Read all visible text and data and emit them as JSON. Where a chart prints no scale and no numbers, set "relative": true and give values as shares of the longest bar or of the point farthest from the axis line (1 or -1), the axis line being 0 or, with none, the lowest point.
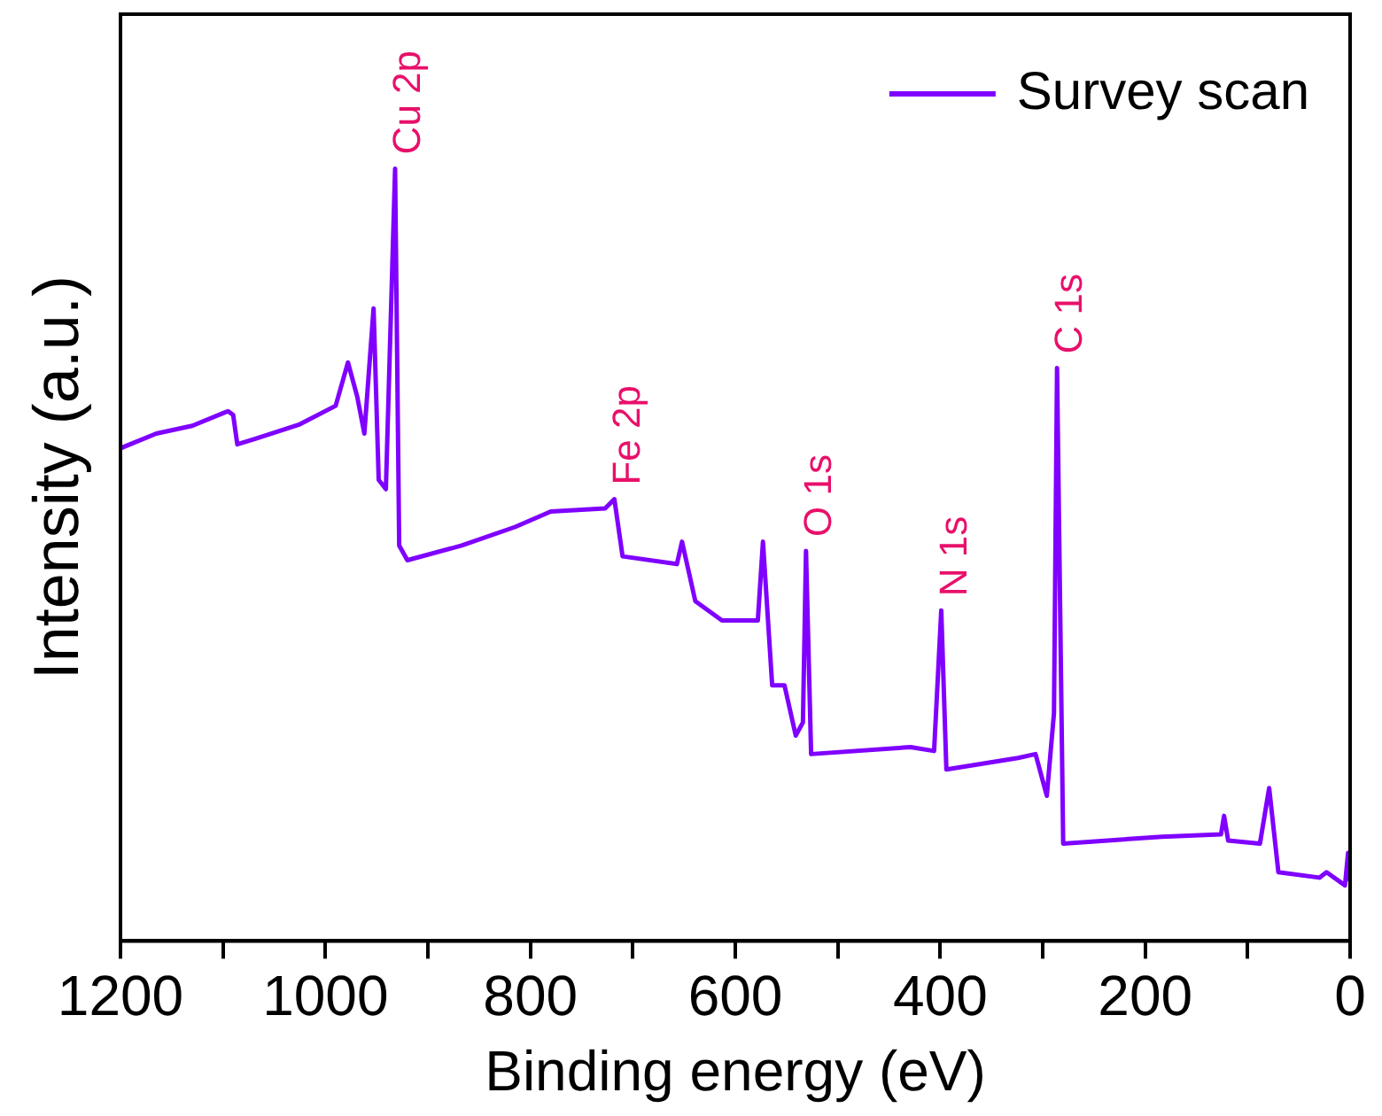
{
  "chart_data": {
    "type": "line",
    "relative": true,
    "xlabel": "Binding energy (eV)",
    "ylabel": "Intensity (a.u.)",
    "xlim": [
      1200,
      0
    ],
    "xticks": [
      1200,
      {
        "value": 1100,
        "label": null
      },
      1000,
      {
        "value": 900,
        "label": null
      },
      800,
      {
        "value": 700,
        "label": null
      },
      600,
      {
        "value": 500,
        "label": null
      },
      400,
      {
        "value": 300,
        "label": null
      },
      200,
      {
        "value": 100,
        "label": null
      },
      0
    ],
    "legend": "top right",
    "grid": false,
    "marker": "none",
    "line_style": "solid",
    "series": [
      {
        "name": "Survey scan",
        "color": "#7f00ff",
        "x": [
          1200,
          1165,
          1130,
          1095,
          1090,
          1086,
          1069,
          1025,
          990,
          978,
          969,
          962,
          953,
          948,
          941,
          932,
          928,
          920,
          867,
          815,
          780,
          727,
          718,
          710,
          657,
          652,
          639,
          613,
          578,
          573,
          564,
          552,
          541,
          534,
          531,
          526,
          429,
          406,
          399,
          394,
          324,
          307,
          296,
          289,
          286,
          280,
          184,
          126,
          123,
          119,
          88,
          79,
          70,
          30,
          23,
          5,
          2,
          0
        ],
        "values": [
          0.638,
          0.657,
          0.667,
          0.686,
          0.681,
          0.643,
          0.65,
          0.669,
          0.693,
          0.749,
          0.705,
          0.657,
          0.819,
          0.597,
          0.585,
          1.0,
          0.512,
          0.493,
          0.512,
          0.536,
          0.556,
          0.56,
          0.572,
          0.498,
          0.488,
          0.517,
          0.44,
          0.415,
          0.415,
          0.517,
          0.331,
          0.331,
          0.266,
          0.283,
          0.505,
          0.242,
          0.251,
          0.246,
          0.428,
          0.222,
          0.237,
          0.242,
          0.188,
          0.295,
          0.742,
          0.126,
          0.135,
          0.138,
          0.162,
          0.13,
          0.126,
          0.198,
          0.089,
          0.082,
          0.089,
          0.072,
          0.114,
          0.077
        ]
      }
    ],
    "annotations": [
      {
        "text": "Cu 2p",
        "x": 932,
        "y": 1.0
      },
      {
        "text": "Fe 2p",
        "x": 718,
        "y": 0.572
      },
      {
        "text": "O 1s",
        "x": 531,
        "y": 0.505
      },
      {
        "text": "N 1s",
        "x": 399,
        "y": 0.428
      },
      {
        "text": "C 1s",
        "x": 286,
        "y": 0.742
      }
    ]
  }
}
